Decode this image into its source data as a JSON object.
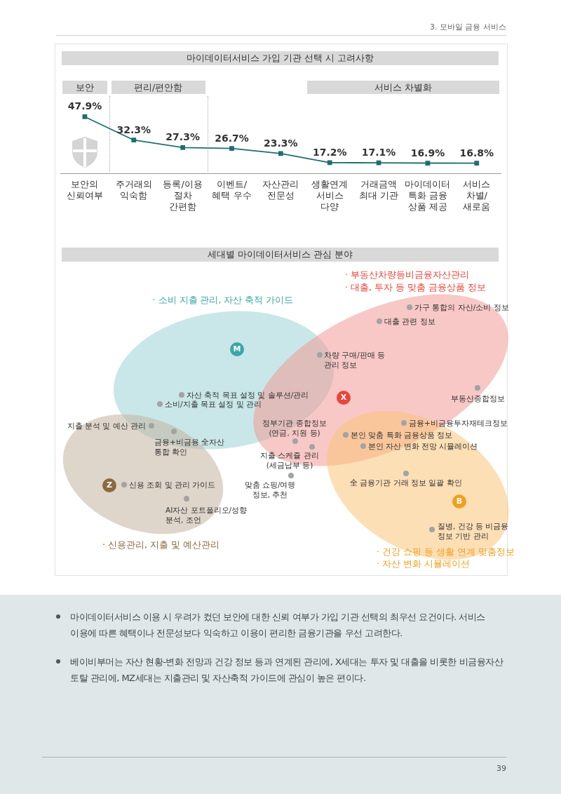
{
  "chart_data": [
    {
      "type": "line",
      "title": "마이데이터서비스 가입 기관 선택 시 고려사항",
      "categories": [
        "보안의\n신뢰여부",
        "주거래의\n익숙함",
        "등록/이용\n절차\n간편함",
        "이벤트/\n혜택 우수",
        "자산관리\n전문성",
        "생활연계\n서비스\n다양",
        "거래금액\n최대 기관",
        "마이데이터\n특화 금융\n상품 제공",
        "서비스\n차별/\n새로움"
      ],
      "values": [
        47.9,
        32.3,
        27.3,
        26.7,
        23.3,
        17.2,
        17.1,
        16.9,
        16.8
      ],
      "value_labels": [
        "47.9%",
        "32.3%",
        "27.3%",
        "26.7%",
        "23.3%",
        "17.2%",
        "17.1%",
        "16.9%",
        "16.8%"
      ],
      "color": "#1f6e6e",
      "marker": "square",
      "annotations": [
        "3. 모바일 금융 서비스",
        "보안",
        "편리/편안함",
        "서비스 차별화"
      ]
    },
    {
      "type": "other",
      "title": "세대별 마이데이터서비스 관심 분야",
      "annotations": [
        "· 소비 지출 관리, 자산 축적 가이드",
        "· 부동산차량등비금융자산관리",
        "· 대출, 투자 등 맞춤 금융상품 정보",
        "· 신용관리, 지출 및 예산관리",
        "· 건강 쇼핑 등 생활 연계 맞춤정보",
        "· 자산 변화 시뮬레이션",
        "M",
        "X",
        "Z",
        "B",
        "가구 통합의 자산/소비 정보",
        "대출 관련 정보",
        "차량 구매/판매 등\n관리 정보",
        "부동산종합정보",
        "자산 축적 목표 설정 및 솔루션/관리",
        "소비/지출 목표 설정 및 관리",
        "지출 분석 및 예산 관리",
        "금융+비금융 全자산\n통합 확인",
        "정부기관 종합정보\n(연금, 지원 등)",
        "지출 스케쥴 관리\n(세금납부 등)",
        "맞춤 쇼핑/여행\n정보, 추천",
        "신용 조회 및 관리 가이드",
        "AI자산 포트폴리오/성향\n분석, 조언",
        "금융+비금융투자재테크정보",
        "본인 맞춤 특화 금융상품 정보",
        "본인 자산 변화 전망 시뮬레이션",
        "全 금융기관 거래 정보 일괄 확인",
        "질병, 건강 등 비금융\n정보 기반 관리",
        "마이데이터서비스 이용 시 우려가 컸던 보안에 대한 신뢰 여부가 가입 기관 선택의 최우선 요건이다. 서비스 이용에 따른 혜택이나 전문성보다 익숙하고 이용이 편리한 금융기관을 우선 고려한다.",
        "베이비부머는 자산 현황-변화 전망과 건강 정보 등과 연계된 관리에, X세대는 투자 및 대출을 비롯한 비금융자산 토탈 관리에, MZ세대는 지출관리 및 자산축적 가이드에 관심이 높은 편이다.",
        "39"
      ]
    }
  ]
}
